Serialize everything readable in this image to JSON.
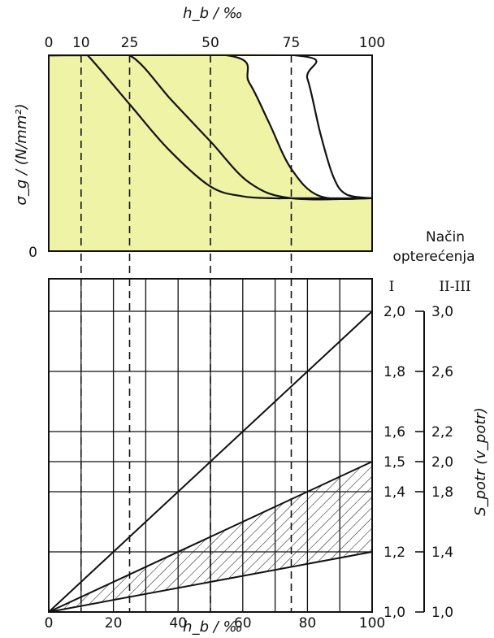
{
  "chart_data": [
    {
      "type": "line",
      "panel": "top",
      "xlabel": "h_b / ‰",
      "ylabel": "σ_g / (N/mm²)",
      "xlim": [
        0,
        100
      ],
      "x_ticks": [
        "0",
        "10",
        "25",
        "50",
        "75",
        "100"
      ],
      "y_ticks": [
        "0"
      ],
      "ylim_note": "relative scale; plateau at top, lower level about 0.29 of full height",
      "fill_color": "#eef3a6",
      "series": [
        {
          "x": [
            0,
            10,
            12,
            25,
            37,
            50,
            60,
            70,
            75,
            100
          ],
          "y": [
            1.0,
            1.0,
            1.0,
            0.75,
            0.52,
            0.33,
            0.28,
            0.27,
            0.27,
            0.27
          ]
        },
        {
          "x": [
            0,
            12,
            25,
            38,
            50,
            62,
            75,
            100
          ],
          "y": [
            1.0,
            1.0,
            1.0,
            0.77,
            0.56,
            0.35,
            0.27,
            0.27
          ]
        },
        {
          "x": [
            0,
            55,
            62,
            68,
            75,
            84,
            100
          ],
          "y": [
            1.0,
            1.0,
            0.86,
            0.66,
            0.42,
            0.28,
            0.27
          ]
        },
        {
          "x": [
            0,
            76,
            80,
            84,
            88,
            92,
            100
          ],
          "y": [
            1.0,
            1.0,
            0.88,
            0.6,
            0.38,
            0.29,
            0.27
          ]
        }
      ],
      "dashed_guides_x": [
        10,
        25,
        50,
        75
      ]
    },
    {
      "type": "line",
      "panel": "bottom",
      "xlabel": "h_b / ‰",
      "ylabel": "S_potr (v_potr)",
      "xlim": [
        0,
        100
      ],
      "ylim": [
        1.0,
        2.0
      ],
      "x_ticks": [
        "0",
        "20",
        "40",
        "60",
        "80",
        "100"
      ],
      "y_ticks_I": [
        "1,0",
        "1,2",
        "1,4",
        "1,5",
        "1,6",
        "1,8",
        "2,0"
      ],
      "y_ticks_I_values": [
        1.0,
        1.2,
        1.4,
        1.5,
        1.6,
        1.8,
        2.0
      ],
      "y_ticks_II_III": [
        "1,0",
        "1,4",
        "1,8",
        "2,0",
        "2,2",
        "2,6",
        "3,0"
      ],
      "y_ticks_II_III_values": [
        1.0,
        1.4,
        1.8,
        2.0,
        2.2,
        2.6,
        3.0
      ],
      "series": [
        {
          "x": [
            0,
            100
          ],
          "y": [
            1.0,
            2.0
          ]
        },
        {
          "x": [
            0,
            100
          ],
          "y": [
            1.0,
            1.5
          ]
        },
        {
          "x": [
            0,
            100
          ],
          "y": [
            1.0,
            1.2
          ]
        }
      ],
      "hatched_band": {
        "upper": [
          1.0,
          1.5
        ],
        "lower": [
          1.0,
          1.2
        ],
        "x": [
          0,
          100
        ]
      },
      "dashed_guides_x": [
        10,
        25,
        50,
        75
      ],
      "load_case_title": [
        "Način",
        "opterećenja"
      ],
      "load_case_columns": [
        "I",
        "II-III"
      ]
    }
  ]
}
